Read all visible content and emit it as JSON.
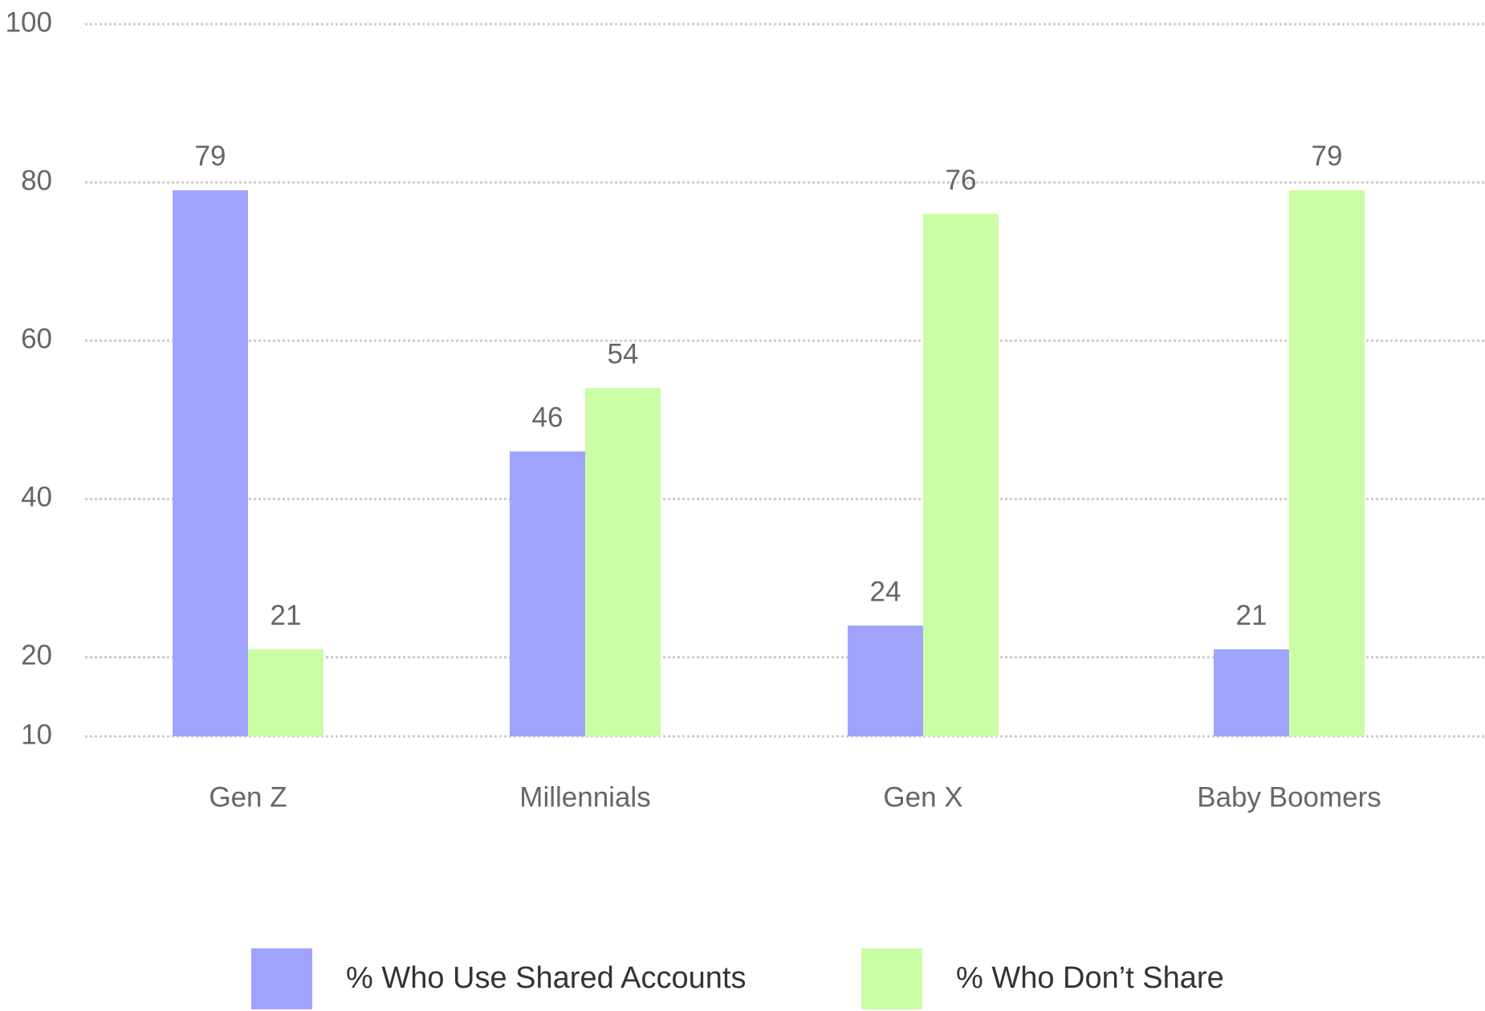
{
  "chart_data": {
    "type": "bar",
    "categories": [
      "Gen Z",
      "Millennials",
      "Gen X",
      "Baby Boomers"
    ],
    "series": [
      {
        "name": "% Who Use Shared Accounts",
        "color": "#a0a3fc",
        "values": [
          79,
          46,
          24,
          21
        ]
      },
      {
        "name": "% Who Don’t Share",
        "color": "#c9fea4",
        "values": [
          21,
          54,
          76,
          79
        ]
      }
    ],
    "ylim": [
      10,
      100
    ],
    "yticks": [
      10,
      20,
      40,
      60,
      80,
      100
    ],
    "grid": true,
    "legend": "bottom"
  }
}
